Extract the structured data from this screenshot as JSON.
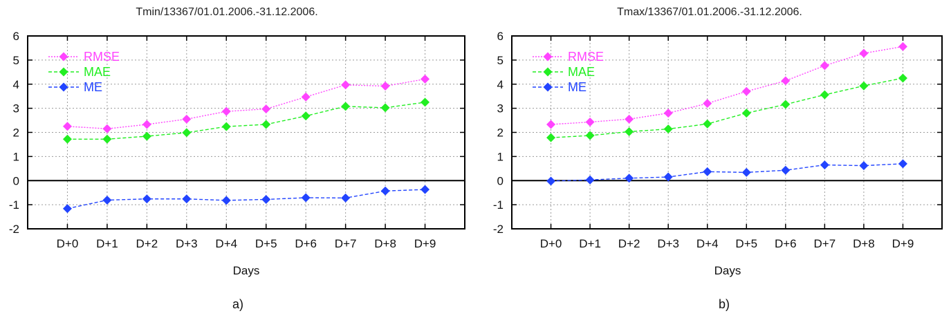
{
  "chart_data": [
    {
      "type": "line",
      "title": "Tmin/13367/01.01.2006.-31.12.2006.",
      "xlabel": "Days",
      "ylabel": "",
      "categories": [
        "D+0",
        "D+1",
        "D+2",
        "D+3",
        "D+4",
        "D+5",
        "D+6",
        "D+7",
        "D+8",
        "D+9"
      ],
      "ylim": [
        -2,
        6
      ],
      "yticks": [
        -2,
        -1,
        0,
        1,
        2,
        3,
        4,
        5,
        6
      ],
      "grid": true,
      "legend_position": "top-left",
      "panel_label": "a)",
      "series": [
        {
          "name": "RMSE",
          "color": "#ff44ff",
          "values": [
            2.25,
            2.15,
            2.33,
            2.55,
            2.87,
            2.97,
            3.47,
            3.97,
            3.92,
            4.21
          ]
        },
        {
          "name": "MAE",
          "color": "#22ee22",
          "values": [
            1.72,
            1.72,
            1.84,
            1.99,
            2.24,
            2.33,
            2.68,
            3.08,
            3.02,
            3.25
          ]
        },
        {
          "name": "ME",
          "color": "#2244ff",
          "values": [
            -1.16,
            -0.81,
            -0.76,
            -0.76,
            -0.82,
            -0.78,
            -0.71,
            -0.72,
            -0.43,
            -0.37
          ]
        }
      ]
    },
    {
      "type": "line",
      "title": "Tmax/13367/01.01.2006.-31.12.2006.",
      "xlabel": "Days",
      "ylabel": "",
      "categories": [
        "D+0",
        "D+1",
        "D+2",
        "D+3",
        "D+4",
        "D+5",
        "D+6",
        "D+7",
        "D+8",
        "D+9"
      ],
      "ylim": [
        -2,
        6
      ],
      "yticks": [
        -2,
        -1,
        0,
        1,
        2,
        3,
        4,
        5,
        6
      ],
      "grid": true,
      "legend_position": "top-left",
      "panel_label": "b)",
      "series": [
        {
          "name": "RMSE",
          "color": "#ff44ff",
          "values": [
            2.33,
            2.43,
            2.55,
            2.8,
            3.2,
            3.7,
            4.14,
            4.77,
            5.28,
            5.56
          ]
        },
        {
          "name": "MAE",
          "color": "#22ee22",
          "values": [
            1.78,
            1.87,
            2.03,
            2.14,
            2.35,
            2.8,
            3.16,
            3.56,
            3.93,
            4.25
          ]
        },
        {
          "name": "ME",
          "color": "#2244ff",
          "values": [
            -0.02,
            0.03,
            0.1,
            0.15,
            0.37,
            0.34,
            0.43,
            0.65,
            0.62,
            0.7
          ]
        }
      ]
    }
  ]
}
